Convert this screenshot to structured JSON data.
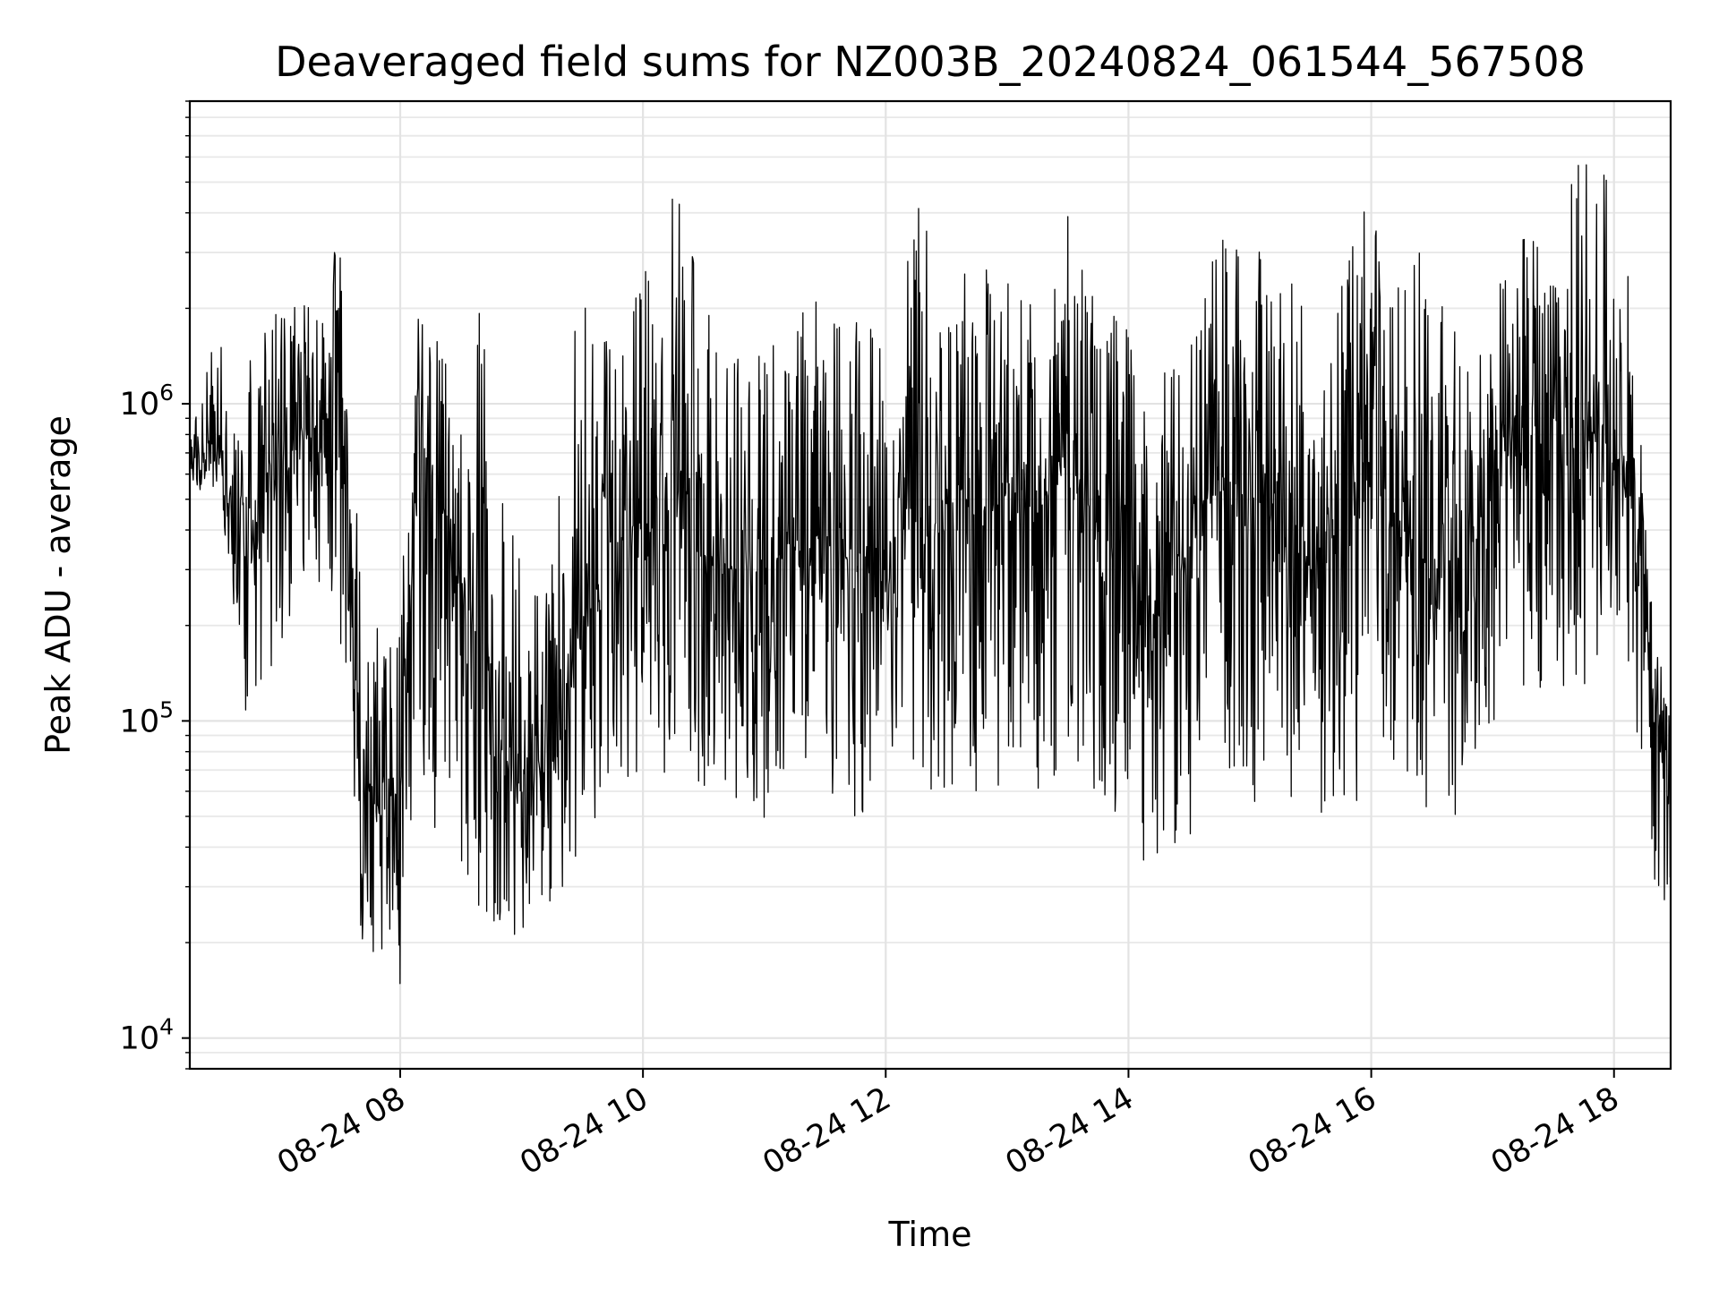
{
  "chart_data": {
    "type": "line",
    "title": "Deaveraged field sums for NZ003B_20240824_061544_567508",
    "xlabel": "Time",
    "ylabel": "Peak ADU - average",
    "yscale": "log",
    "ylim": [
      8000,
      9000000
    ],
    "xlim": [
      "2024-08-24 06:16",
      "2024-08-24 18:28"
    ],
    "grid": true,
    "line_color": "#000000",
    "x_ticks": [
      {
        "t": "2024-08-24 08:00",
        "label": "08-24 08"
      },
      {
        "t": "2024-08-24 10:00",
        "label": "08-24 10"
      },
      {
        "t": "2024-08-24 12:00",
        "label": "08-24 12"
      },
      {
        "t": "2024-08-24 14:00",
        "label": "08-24 14"
      },
      {
        "t": "2024-08-24 16:00",
        "label": "08-24 16"
      },
      {
        "t": "2024-08-24 18:00",
        "label": "08-24 18"
      }
    ],
    "y_ticks": [
      {
        "value": 10000,
        "base": "10",
        "exp": "4"
      },
      {
        "value": 100000,
        "base": "10",
        "exp": "5"
      },
      {
        "value": 1000000,
        "base": "10",
        "exp": "6"
      }
    ],
    "envelope_note_free": true,
    "series": [
      {
        "x": [
          "2024-08-24 06:16",
          "2024-08-24 06:30",
          "2024-08-24 06:45",
          "2024-08-24 07:00",
          "2024-08-24 07:15",
          "2024-08-24 07:30",
          "2024-08-24 07:40",
          "2024-08-24 07:50",
          "2024-08-24 08:00",
          "2024-08-24 08:10",
          "2024-08-24 08:20",
          "2024-08-24 08:30",
          "2024-08-24 08:40",
          "2024-08-24 08:50",
          "2024-08-24 09:00",
          "2024-08-24 09:15",
          "2024-08-24 09:30",
          "2024-08-24 09:45",
          "2024-08-24 10:00",
          "2024-08-24 10:15",
          "2024-08-24 10:30",
          "2024-08-24 10:45",
          "2024-08-24 11:00",
          "2024-08-24 11:15",
          "2024-08-24 11:30",
          "2024-08-24 11:45",
          "2024-08-24 12:00",
          "2024-08-24 12:15",
          "2024-08-24 12:30",
          "2024-08-24 12:45",
          "2024-08-24 13:00",
          "2024-08-24 13:15",
          "2024-08-24 13:30",
          "2024-08-24 13:45",
          "2024-08-24 14:00",
          "2024-08-24 14:15",
          "2024-08-24 14:30",
          "2024-08-24 14:45",
          "2024-08-24 15:00",
          "2024-08-24 15:15",
          "2024-08-24 15:30",
          "2024-08-24 15:45",
          "2024-08-24 16:00",
          "2024-08-24 16:15",
          "2024-08-24 16:30",
          "2024-08-24 16:45",
          "2024-08-24 17:00",
          "2024-08-24 17:15",
          "2024-08-24 17:30",
          "2024-08-24 17:45",
          "2024-08-24 18:00",
          "2024-08-24 18:10",
          "2024-08-24 18:20",
          "2024-08-24 18:28"
        ],
        "median": [
          620000,
          720000,
          300000,
          650000,
          800000,
          1000000,
          80000,
          50000,
          60000,
          800000,
          500000,
          250000,
          200000,
          80000,
          60000,
          90000,
          200000,
          350000,
          400000,
          450000,
          350000,
          300000,
          300000,
          350000,
          400000,
          300000,
          350000,
          450000,
          400000,
          500000,
          500000,
          450000,
          700000,
          400000,
          300000,
          200000,
          300000,
          600000,
          500000,
          400000,
          300000,
          500000,
          600000,
          400000,
          300000,
          250000,
          600000,
          700000,
          900000,
          800000,
          700000,
          600000,
          100000,
          50000
        ],
        "low": [
          500000,
          550000,
          90000,
          150000,
          250000,
          200000,
          20000,
          15000,
          12000,
          60000,
          40000,
          30000,
          25000,
          20000,
          20000,
          25000,
          40000,
          60000,
          60000,
          70000,
          60000,
          50000,
          40000,
          60000,
          60000,
          50000,
          50000,
          70000,
          50000,
          60000,
          60000,
          60000,
          60000,
          60000,
          40000,
          30000,
          40000,
          60000,
          50000,
          50000,
          40000,
          50000,
          60000,
          60000,
          50000,
          50000,
          100000,
          120000,
          120000,
          100000,
          150000,
          100000,
          30000,
          20000
        ],
        "high": [
          800000,
          1800000,
          1500000,
          2200000,
          2300000,
          3500000,
          400000,
          200000,
          250000,
          2500000,
          1800000,
          900000,
          2500000,
          600000,
          300000,
          400000,
          2800000,
          1400000,
          2500000,
          5000000,
          2600000,
          1800000,
          1500000,
          2000000,
          2200000,
          2000000,
          2000000,
          4500000,
          2500000,
          2800000,
          2500000,
          2000000,
          4500000,
          2000000,
          1800000,
          1200000,
          1500000,
          3500000,
          3200000,
          4000000,
          1800000,
          2800000,
          4500000,
          2200000,
          4000000,
          1500000,
          2500000,
          3500000,
          4000000,
          6500000,
          5000000,
          2200000,
          200000,
          100000
        ]
      }
    ]
  }
}
